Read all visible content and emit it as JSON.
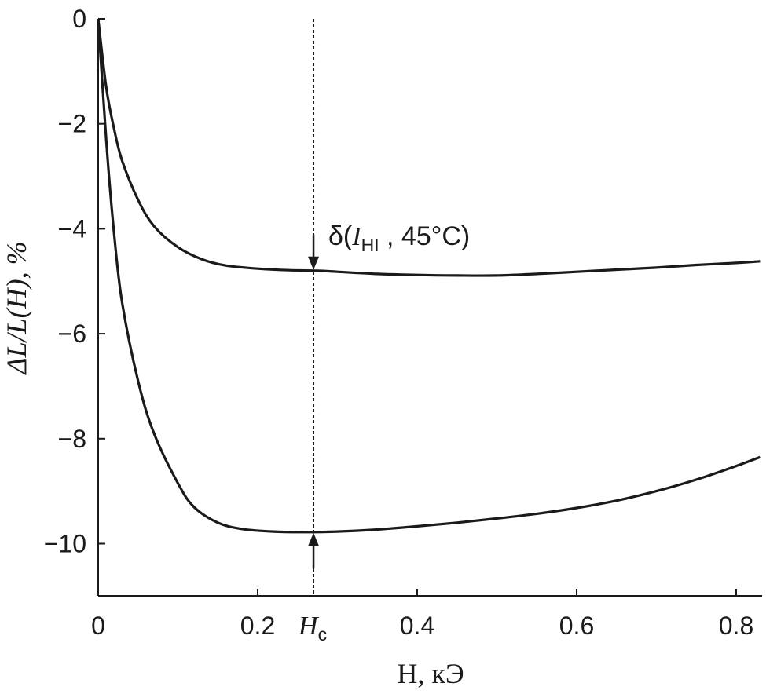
{
  "chart_data": {
    "type": "line",
    "xlabel": "H, кЭ",
    "ylabel": "ΔL/L(H), %",
    "xlim": [
      0,
      0.83
    ],
    "ylim": [
      -11,
      0
    ],
    "xticks": [
      0,
      0.2,
      0.4,
      0.6,
      0.8
    ],
    "xtick_labels": [
      "0",
      "0.2",
      "0.4",
      "0.6",
      "0.8"
    ],
    "yticks": [
      0,
      -2,
      -4,
      -6,
      -8,
      -10
    ],
    "ytick_labels": [
      "0",
      "−2",
      "−4",
      "−6",
      "−8",
      "−10"
    ],
    "grid": false,
    "series": [
      {
        "x": [
          0,
          0.01,
          0.02,
          0.03,
          0.05,
          0.07,
          0.1,
          0.13,
          0.16,
          0.2,
          0.24,
          0.275,
          0.3,
          0.35,
          0.4,
          0.45,
          0.5,
          0.55,
          0.6,
          0.65,
          0.7,
          0.75,
          0.8,
          0.83
        ],
        "y": [
          0,
          -1.3,
          -2.1,
          -2.7,
          -3.45,
          -3.95,
          -4.35,
          -4.58,
          -4.7,
          -4.76,
          -4.79,
          -4.8,
          -4.82,
          -4.86,
          -4.88,
          -4.89,
          -4.89,
          -4.86,
          -4.82,
          -4.78,
          -4.74,
          -4.69,
          -4.65,
          -4.62
        ]
      },
      {
        "x": [
          0,
          0.01,
          0.02,
          0.03,
          0.05,
          0.07,
          0.1,
          0.12,
          0.15,
          0.18,
          0.22,
          0.26,
          0.3,
          0.35,
          0.4,
          0.45,
          0.5,
          0.55,
          0.6,
          0.65,
          0.7,
          0.75,
          0.8,
          0.83
        ],
        "y": [
          0,
          -2.3,
          -4.1,
          -5.4,
          -6.9,
          -7.9,
          -8.85,
          -9.3,
          -9.6,
          -9.72,
          -9.77,
          -9.78,
          -9.77,
          -9.73,
          -9.67,
          -9.6,
          -9.52,
          -9.43,
          -9.32,
          -9.18,
          -9.0,
          -8.78,
          -8.52,
          -8.35
        ]
      }
    ],
    "marker": {
      "x": 0.27,
      "label": "H",
      "label_sub": "c"
    },
    "annotation": {
      "prefix": "δ(",
      "var": "I",
      "var_sub": "HI",
      "suffix": " , 45°C)"
    }
  }
}
